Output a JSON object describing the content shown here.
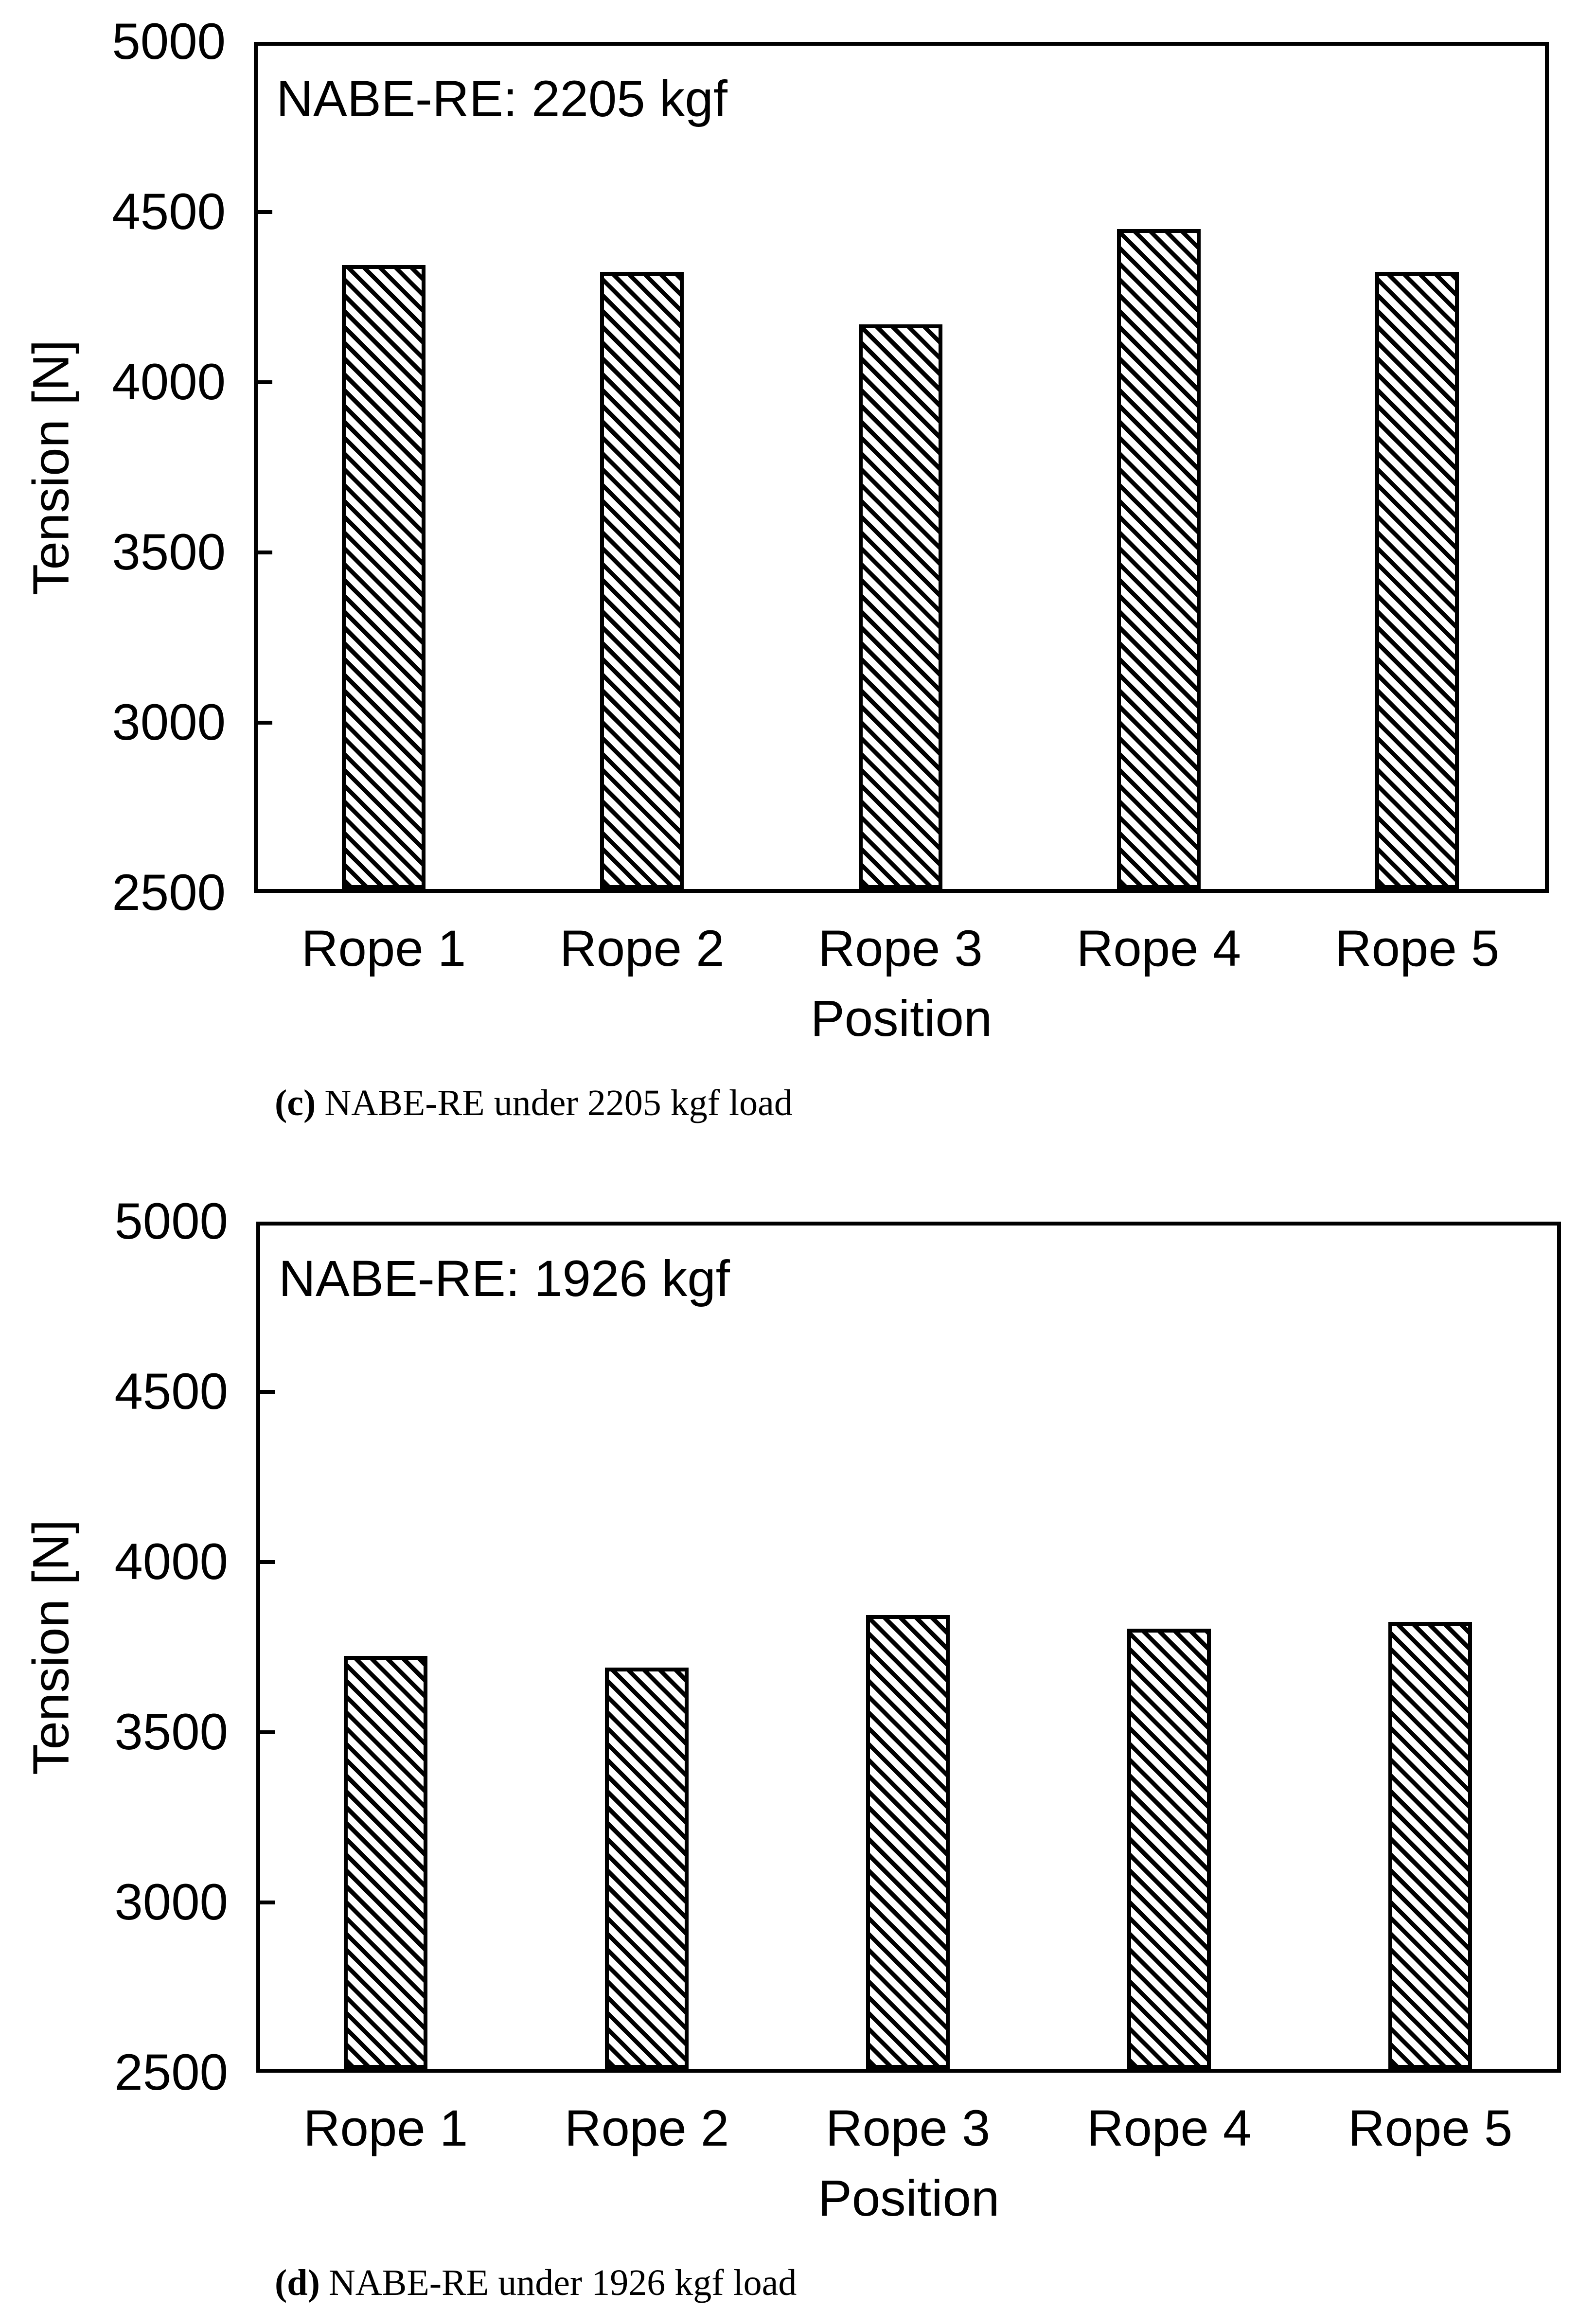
{
  "figure": {
    "ylabel": "Tension [N]",
    "xlabel": "Position"
  },
  "chart_data": [
    {
      "type": "bar",
      "panel_label": "(c)",
      "caption": "NABE-RE under 2205 kgf load",
      "title": "NABE-RE: 2205 kgf",
      "xlabel": "Position",
      "ylabel": "Tension [N]",
      "categories": [
        "Rope 1",
        "Rope 2",
        "Rope 3",
        "Rope 4",
        "Rope 5"
      ],
      "values": [
        4345,
        4325,
        4170,
        4450,
        4325
      ],
      "ylim": [
        2500,
        5000
      ],
      "yticks": [
        2500,
        3000,
        3500,
        4000,
        4500,
        5000
      ],
      "grid": false,
      "legend": false,
      "bar_style": "white fill with black diagonal backslash hatch and black outline",
      "bar_fill": "#ffffff",
      "hatch_color": "#000000",
      "axis_color": "#000000"
    },
    {
      "type": "bar",
      "panel_label": "(d)",
      "caption": "NABE-RE under 1926 kgf load",
      "title": "NABE-RE: 1926 kgf",
      "xlabel": "Position",
      "ylabel": "Tension [N]",
      "categories": [
        "Rope 1",
        "Rope 2",
        "Rope 3",
        "Rope 4",
        "Rope 5"
      ],
      "values": [
        3725,
        3690,
        3845,
        3805,
        3825
      ],
      "ylim": [
        2500,
        5000
      ],
      "yticks": [
        2500,
        3000,
        3500,
        4000,
        4500,
        5000
      ],
      "grid": false,
      "legend": false,
      "bar_style": "white fill with black diagonal backslash hatch and black outline",
      "bar_fill": "#ffffff",
      "hatch_color": "#000000",
      "axis_color": "#000000"
    }
  ]
}
